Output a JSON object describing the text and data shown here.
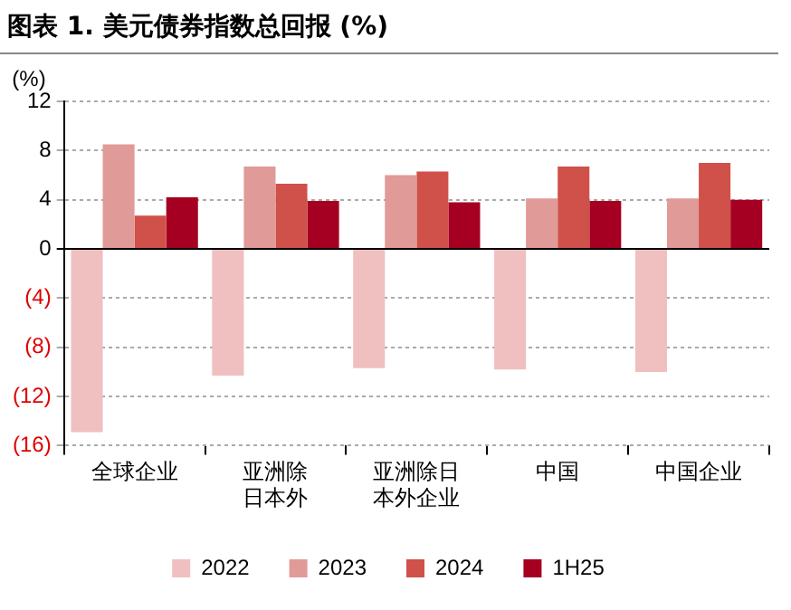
{
  "chart_data": {
    "type": "bar",
    "title": "图表 1. 美元债券指数总回报 (%)",
    "ylabel": "(%)",
    "categories": [
      "全球企业",
      "亚洲除日本外",
      "亚洲除日本外企业",
      "中国",
      "中国企业"
    ],
    "series": [
      {
        "name": "2022",
        "color": "#f0bfbf",
        "values": [
          -14.9,
          -10.3,
          -9.7,
          -9.8,
          -10.0
        ]
      },
      {
        "name": "2023",
        "color": "#e09a97",
        "values": [
          8.5,
          6.7,
          6.0,
          4.1,
          4.1
        ]
      },
      {
        "name": "2024",
        "color": "#d0504a",
        "values": [
          2.7,
          5.3,
          6.3,
          6.7,
          7.0
        ]
      },
      {
        "name": "1H25",
        "color": "#a50021",
        "values": [
          4.2,
          3.9,
          3.8,
          3.9,
          4.0
        ]
      }
    ],
    "ylim": [
      -16,
      12
    ],
    "yticks": [
      12,
      8,
      4,
      0,
      {
        "value": -4,
        "label": "(4)"
      },
      {
        "value": -8,
        "label": "(8)"
      },
      {
        "value": -12,
        "label": "(12)"
      },
      {
        "value": -16,
        "label": "(16)"
      }
    ],
    "grid": "y",
    "legend": "bottom"
  }
}
